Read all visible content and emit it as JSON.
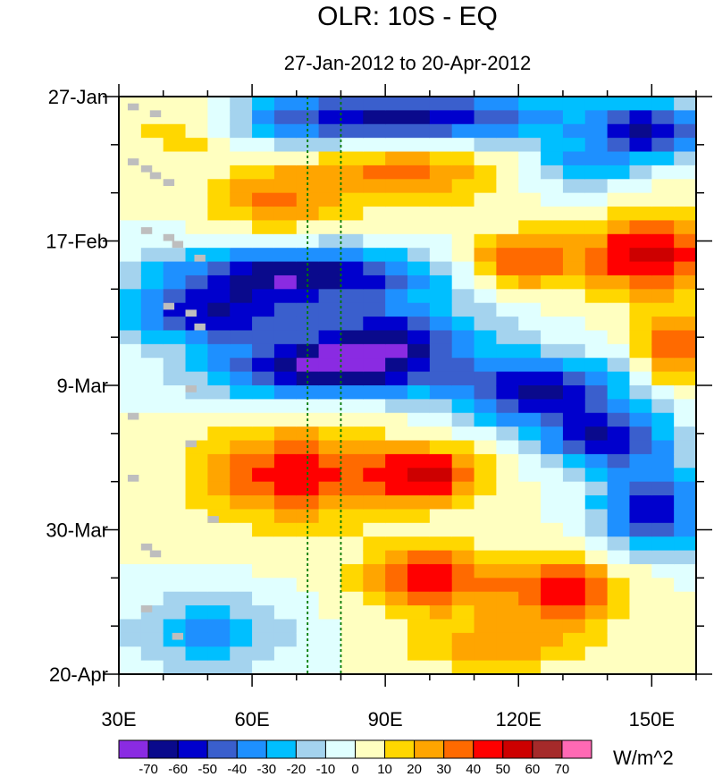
{
  "chart_data": {
    "type": "heatmap",
    "title": "OLR: 10S - EQ",
    "subtitle": "27-Jan-2012 to 20-Apr-2012",
    "xlabel": "",
    "ylabel": "",
    "x_range": [
      30,
      160
    ],
    "x_ticks": [
      {
        "value": 30,
        "label": "30E"
      },
      {
        "value": 60,
        "label": "60E"
      },
      {
        "value": 90,
        "label": "90E"
      },
      {
        "value": 120,
        "label": "120E"
      },
      {
        "value": 150,
        "label": "150E"
      }
    ],
    "y_range_days": [
      0,
      84
    ],
    "y_ticks": [
      {
        "value": 0,
        "label": "27-Jan"
      },
      {
        "value": 21,
        "label": "17-Feb"
      },
      {
        "value": 42,
        "label": "9-Mar"
      },
      {
        "value": 63,
        "label": "30-Mar"
      },
      {
        "value": 84,
        "label": "20-Apr"
      }
    ],
    "reference_lines_lon": [
      72.5,
      80
    ],
    "colorbar": {
      "units": "W/m^2",
      "levels": [
        -70,
        -60,
        -50,
        -40,
        -30,
        -20,
        -10,
        0,
        10,
        20,
        30,
        40,
        50,
        60,
        70
      ],
      "colors": [
        "#8a2be2",
        "#0a0a8c",
        "#0000cd",
        "#3a5fcd",
        "#1e90ff",
        "#00bfff",
        "#a4d3ee",
        "#e0ffff",
        "#ffffc0",
        "#ffd700",
        "#ffa500",
        "#ff6a00",
        "#ff0000",
        "#cd0000",
        "#a52a2a",
        "#ff69b4"
      ]
    },
    "field": {
      "lon_step": 5,
      "day_step": 2,
      "features": [
        {
          "lon": 92,
          "day": 3,
          "amp": -65,
          "wlon": 40,
          "wday": 4
        },
        {
          "lon": 150,
          "day": 5,
          "amp": -55,
          "wlon": 12,
          "wday": 4
        },
        {
          "lon": 45,
          "day": 4,
          "amp": 25,
          "wlon": 14,
          "wday": 5
        },
        {
          "lon": 95,
          "day": 11,
          "amp": 35,
          "wlon": 20,
          "wday": 5
        },
        {
          "lon": 135,
          "day": 10,
          "amp": -30,
          "wlon": 12,
          "wday": 4
        },
        {
          "lon": 65,
          "day": 15,
          "amp": 30,
          "wlon": 14,
          "wday": 5
        },
        {
          "lon": 150,
          "day": 23,
          "amp": 55,
          "wlon": 16,
          "wday": 6
        },
        {
          "lon": 120,
          "day": 24,
          "amp": 40,
          "wlon": 12,
          "wday": 4
        },
        {
          "lon": 70,
          "day": 26,
          "amp": -70,
          "wlon": 30,
          "wday": 4
        },
        {
          "lon": 50,
          "day": 32,
          "amp": -55,
          "wlon": 18,
          "wday": 4
        },
        {
          "lon": 90,
          "day": 35,
          "amp": -55,
          "wlon": 22,
          "wday": 5
        },
        {
          "lon": 75,
          "day": 40,
          "amp": -65,
          "wlon": 25,
          "wday": 4
        },
        {
          "lon": 125,
          "day": 43,
          "amp": -60,
          "wlon": 20,
          "wday": 5
        },
        {
          "lon": 140,
          "day": 50,
          "amp": -55,
          "wlon": 15,
          "wday": 4
        },
        {
          "lon": 155,
          "day": 37,
          "amp": 40,
          "wlon": 8,
          "wday": 5
        },
        {
          "lon": 70,
          "day": 55,
          "amp": 45,
          "wlon": 22,
          "wday": 7
        },
        {
          "lon": 100,
          "day": 55,
          "amp": 50,
          "wlon": 12,
          "wday": 4
        },
        {
          "lon": 150,
          "day": 60,
          "amp": -60,
          "wlon": 12,
          "wday": 6
        },
        {
          "lon": 100,
          "day": 70,
          "amp": 45,
          "wlon": 15,
          "wday": 5
        },
        {
          "lon": 130,
          "day": 72,
          "amp": 45,
          "wlon": 14,
          "wday": 5
        },
        {
          "lon": 50,
          "day": 78,
          "amp": -35,
          "wlon": 16,
          "wday": 5
        },
        {
          "lon": 115,
          "day": 80,
          "amp": 25,
          "wlon": 20,
          "wday": 4
        }
      ]
    },
    "missing_cells": [
      {
        "lon": 32,
        "day": 1
      },
      {
        "lon": 37,
        "day": 2
      },
      {
        "lon": 32,
        "day": 9
      },
      {
        "lon": 35,
        "day": 10
      },
      {
        "lon": 37,
        "day": 11
      },
      {
        "lon": 40,
        "day": 12
      },
      {
        "lon": 35,
        "day": 19
      },
      {
        "lon": 40,
        "day": 20
      },
      {
        "lon": 42,
        "day": 21
      },
      {
        "lon": 47,
        "day": 23
      },
      {
        "lon": 40,
        "day": 30
      },
      {
        "lon": 45,
        "day": 31
      },
      {
        "lon": 47,
        "day": 33
      },
      {
        "lon": 45,
        "day": 42
      },
      {
        "lon": 32,
        "day": 46
      },
      {
        "lon": 45,
        "day": 50
      },
      {
        "lon": 32,
        "day": 55
      },
      {
        "lon": 50,
        "day": 61
      },
      {
        "lon": 35,
        "day": 65
      },
      {
        "lon": 37,
        "day": 66
      },
      {
        "lon": 35,
        "day": 74
      },
      {
        "lon": 42,
        "day": 78
      }
    ]
  }
}
